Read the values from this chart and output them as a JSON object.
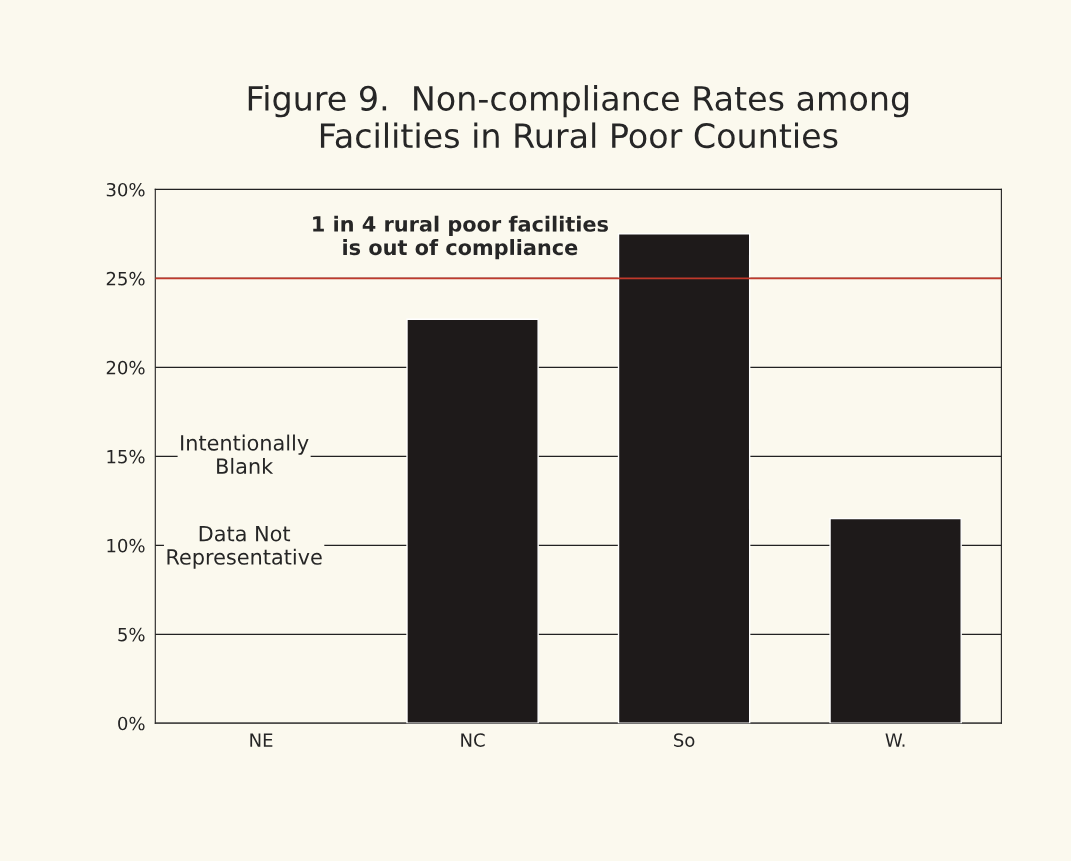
{
  "chart_data": {
    "type": "bar",
    "title": "Figure 9.  Non-compliance Rates among\nFacilities in Rural Poor Counties",
    "categories": [
      "NE",
      "NC",
      "So",
      "W."
    ],
    "values": [
      null,
      22.7,
      27.5,
      11.5
    ],
    "color": "#1e1a1a",
    "ylim": [
      0,
      30
    ],
    "yticks": [
      {
        "value": 0,
        "label": "0%"
      },
      {
        "value": 5,
        "label": "5%"
      },
      {
        "value": 10,
        "label": "10%"
      },
      {
        "value": 15,
        "label": "15%"
      },
      {
        "value": 20,
        "label": "20%"
      },
      {
        "value": 25,
        "label": "25%"
      },
      {
        "value": 30,
        "label": "30%"
      }
    ],
    "grid": "y",
    "ref_lines": [
      {
        "axis": "y",
        "value": 25,
        "color": "#c0392b"
      }
    ],
    "annotations": [
      "1 in 4 rural poor facilities\nis out of compliance",
      "Intentionally\nBlank",
      "Data Not\nRepresentative"
    ]
  }
}
